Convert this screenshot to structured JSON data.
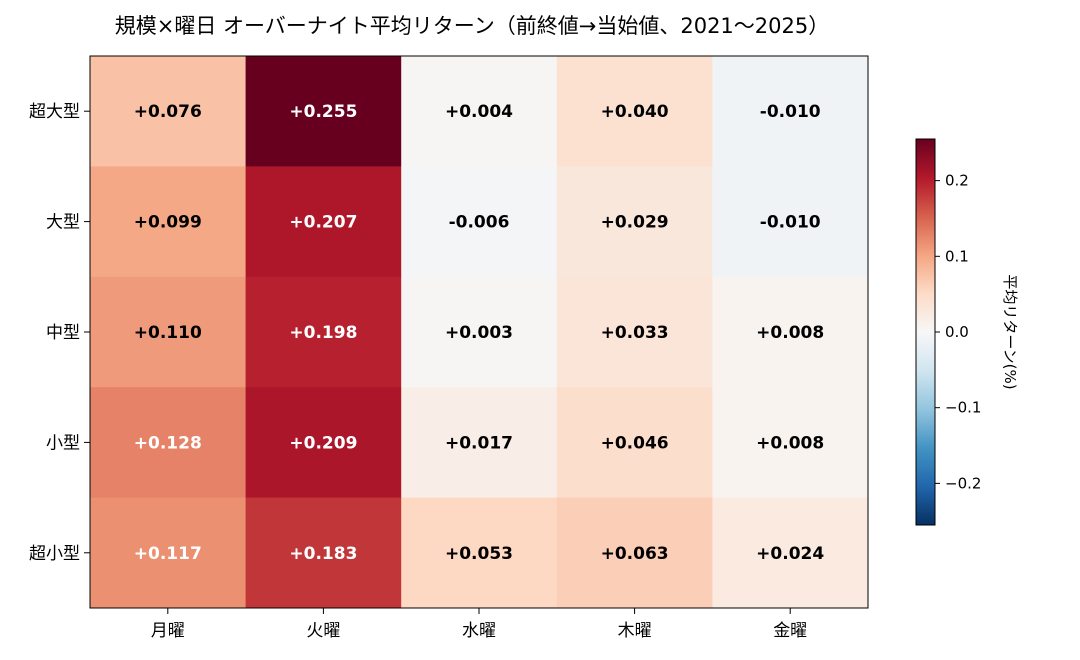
{
  "chart_data": {
    "type": "heatmap",
    "title": "規模×曜日 オーバーナイト平均リターン（前終値→当始値、2021〜2025）",
    "x_categories": [
      "月曜",
      "火曜",
      "水曜",
      "木曜",
      "金曜"
    ],
    "y_categories": [
      "超大型",
      "大型",
      "中型",
      "小型",
      "超小型"
    ],
    "values": [
      [
        0.076,
        0.255,
        0.004,
        0.04,
        -0.01
      ],
      [
        0.099,
        0.207,
        -0.006,
        0.029,
        -0.01
      ],
      [
        0.11,
        0.198,
        0.003,
        0.033,
        0.008
      ],
      [
        0.128,
        0.209,
        0.017,
        0.046,
        0.008
      ],
      [
        0.117,
        0.183,
        0.053,
        0.063,
        0.024
      ]
    ],
    "cell_labels": [
      [
        "+0.076",
        "+0.255",
        "+0.004",
        "+0.040",
        "-0.010"
      ],
      [
        "+0.099",
        "+0.207",
        "-0.006",
        "+0.029",
        "-0.010"
      ],
      [
        "+0.110",
        "+0.198",
        "+0.003",
        "+0.033",
        "+0.008"
      ],
      [
        "+0.128",
        "+0.209",
        "+0.017",
        "+0.046",
        "+0.008"
      ],
      [
        "+0.117",
        "+0.183",
        "+0.053",
        "+0.063",
        "+0.024"
      ]
    ],
    "colorbar": {
      "label": "平均リターン(%)",
      "range": [
        -0.255,
        0.255
      ],
      "ticks": [
        0.2,
        0.1,
        0.0,
        -0.1,
        -0.2
      ],
      "tick_labels": [
        "0.2",
        "0.1",
        "0.0",
        "−0.1",
        "−0.2"
      ],
      "colormap": "RdBu_r",
      "placement": "right"
    },
    "grid": false
  }
}
